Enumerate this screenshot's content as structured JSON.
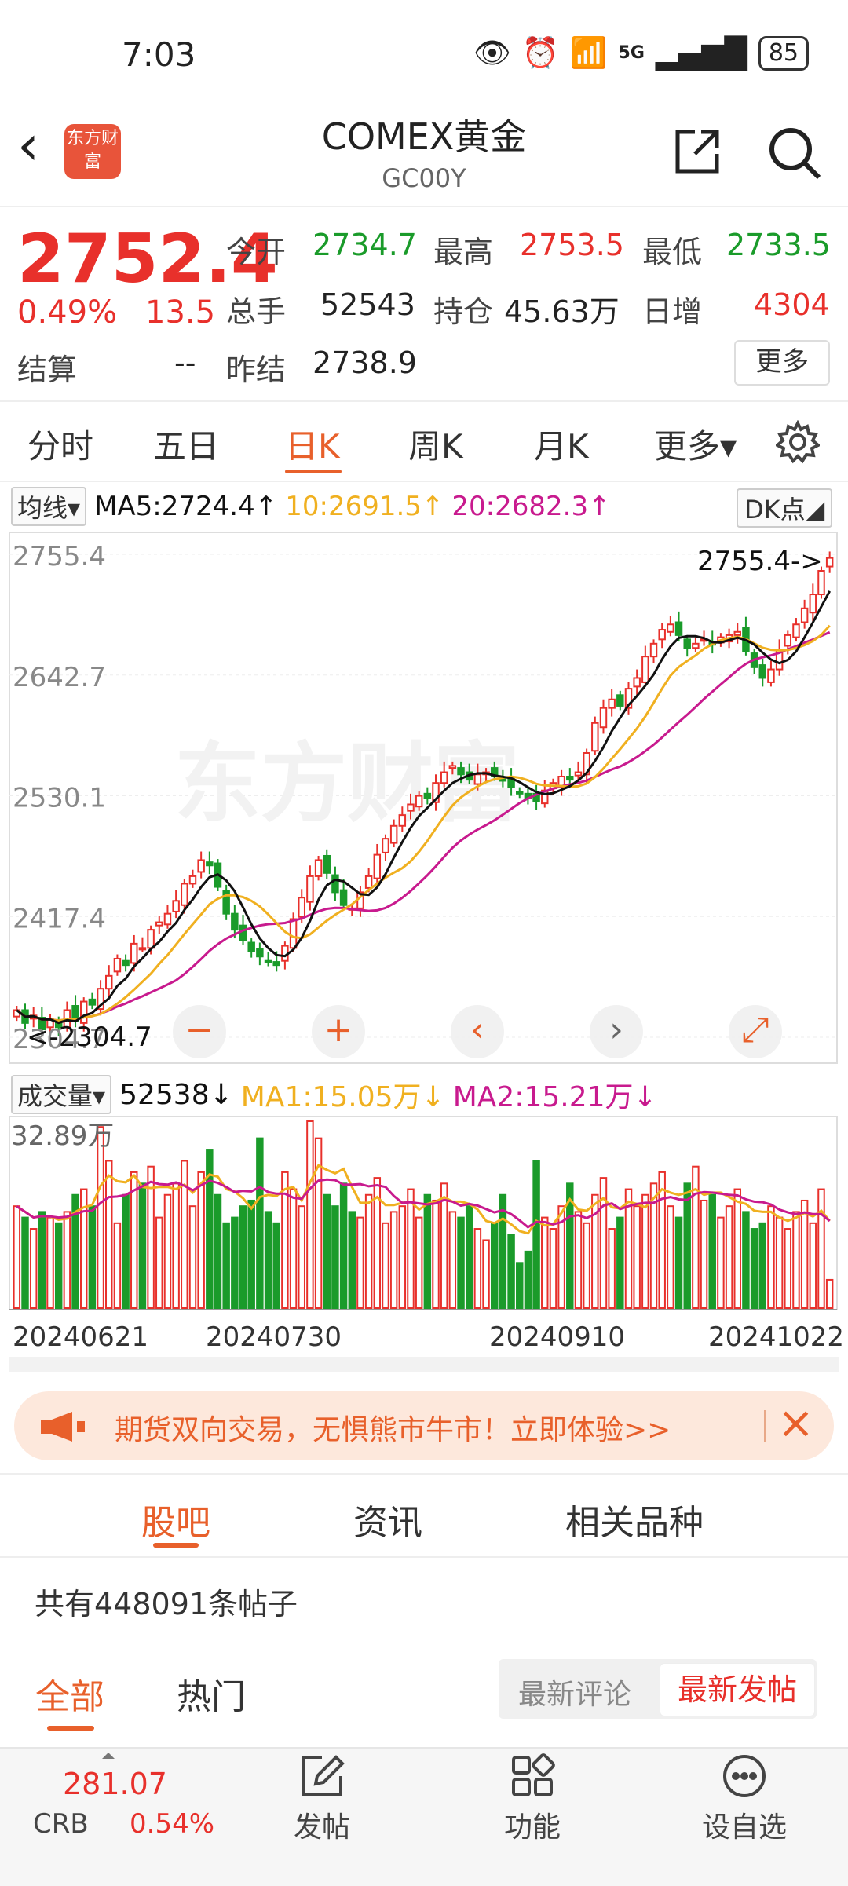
{
  "status_bar": {
    "time": "7:03",
    "network": "5G",
    "battery": "85"
  },
  "header": {
    "logo_text": "东方财富",
    "title": "COMEX黄金",
    "subtitle": "GC00Y"
  },
  "quote": {
    "price": "2752.4",
    "change_pct": "0.49%",
    "change_val": "13.5",
    "open_label": "今开",
    "open": "2734.7",
    "high_label": "最高",
    "high": "2753.5",
    "low_label": "最低",
    "low": "2733.5",
    "volume_label": "总手",
    "volume": "52543",
    "oi_label": "持仓",
    "oi": "45.63万",
    "daily_inc_label": "日增",
    "daily_inc": "4304",
    "settle_label": "结算",
    "settle": "--",
    "prev_settle_label": "昨结",
    "prev_settle": "2738.9",
    "more": "更多"
  },
  "period_tabs": [
    "分时",
    "五日",
    "日K",
    "周K",
    "月K",
    "更多▾"
  ],
  "ma_row": {
    "selector": "均线▾",
    "ma5": "MA5:2724.4↑",
    "ma10": "10:2691.5↑",
    "ma20": "20:2682.3↑",
    "dk": "DK点◢"
  },
  "colors": {
    "up": "#e8302b",
    "down": "#1a9b2a",
    "accent": "#e8602b",
    "ma5": "#111111",
    "ma10": "#f0b020",
    "ma20": "#c81a8e"
  },
  "chart_data": {
    "type": "candlestick",
    "y_ticks": [
      "2755.4",
      "2642.7",
      "2530.1",
      "2417.4",
      "2304.7"
    ],
    "ylim": [
      2304.7,
      2755.4
    ],
    "max_annotation": "2755.4->",
    "min_annotation": "<-2304.7",
    "watermark": "东方财富",
    "closes": [
      2330,
      2318,
      2325,
      2312,
      2322,
      2314,
      2330,
      2320,
      2338,
      2335,
      2350,
      2362,
      2378,
      2372,
      2392,
      2388,
      2405,
      2412,
      2420,
      2432,
      2448,
      2455,
      2470,
      2465,
      2445,
      2420,
      2405,
      2395,
      2385,
      2380,
      2375,
      2372,
      2390,
      2415,
      2435,
      2455,
      2470,
      2458,
      2440,
      2428,
      2425,
      2440,
      2455,
      2475,
      2490,
      2502,
      2512,
      2522,
      2530,
      2528,
      2542,
      2552,
      2558,
      2550,
      2545,
      2550,
      2552,
      2548,
      2544,
      2538,
      2532,
      2528,
      2525,
      2535,
      2542,
      2548,
      2545,
      2552,
      2570,
      2598,
      2612,
      2620,
      2614,
      2630,
      2640,
      2660,
      2672,
      2685,
      2690,
      2680,
      2668,
      2672,
      2676,
      2671,
      2678,
      2680,
      2683,
      2665,
      2650,
      2640,
      2648,
      2666,
      2680,
      2690,
      2705,
      2718,
      2740,
      2752
    ]
  },
  "chart_ctrls": [
    "−",
    "+",
    "‹",
    "›",
    "⤢"
  ],
  "volume_row": {
    "selector": "成交量▾",
    "vol": "52538↓",
    "ma1": "MA1:15.05万↓",
    "ma2": "MA2:15.21万↓"
  },
  "volume_data": {
    "max_label": "32.89万",
    "dates": [
      "20240621",
      "20240730",
      "20240910",
      "20241022"
    ],
    "values": [
      18,
      16,
      14,
      17,
      16,
      15,
      17,
      20,
      21,
      18,
      32,
      26,
      15,
      20,
      24,
      22,
      25,
      16,
      20,
      22,
      26,
      18,
      24,
      28,
      20,
      15,
      16,
      18,
      19,
      30,
      17,
      15,
      24,
      21,
      18,
      33,
      30,
      20,
      18,
      22,
      17,
      16,
      20,
      23,
      15,
      17,
      18,
      21,
      16,
      20,
      19,
      22,
      17,
      16,
      18,
      14,
      12,
      15,
      20,
      13,
      8,
      10,
      26,
      16,
      14,
      18,
      22,
      17,
      15,
      20,
      23,
      14,
      16,
      21,
      18,
      20,
      22,
      24,
      18,
      16,
      22,
      25,
      19,
      20,
      16,
      18,
      21,
      17,
      14,
      15,
      18,
      16,
      14,
      17,
      19,
      15,
      21,
      5
    ]
  },
  "banner": {
    "text": "期货双向交易，无惧熊市牛市！立即体验>>"
  },
  "community_tabs": [
    "股吧",
    "资讯",
    "相关品种"
  ],
  "post_count": "共有448091条帖子",
  "feed_tabs": [
    "全部",
    "热门"
  ],
  "sort": {
    "latest_comment": "最新评论",
    "latest_post": "最新发帖"
  },
  "bottom_nav": {
    "crb_value": "281.07",
    "crb_label": "CRB",
    "crb_pct": "0.54%",
    "post": "发帖",
    "functions": "功能",
    "watchlist": "设自选"
  }
}
